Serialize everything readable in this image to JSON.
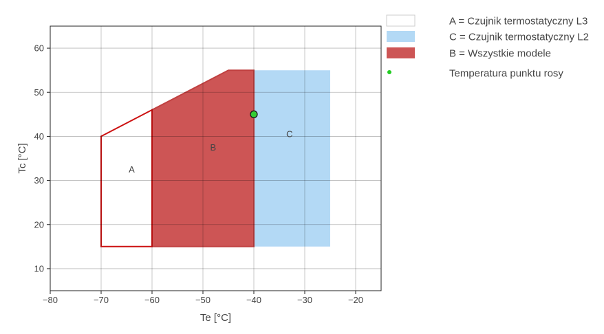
{
  "chart_data": {
    "type": "area",
    "xlabel": "Te [°C]",
    "ylabel": "Tc [°C]",
    "xlim": [
      -80,
      -15
    ],
    "ylim": [
      5,
      65
    ],
    "xticks": [
      -80,
      -70,
      -60,
      -50,
      -40,
      -30,
      -20
    ],
    "xtick_labels": [
      "−80",
      "−70",
      "−60",
      "−50",
      "−40",
      "−30",
      "−20"
    ],
    "yticks": [
      10,
      20,
      30,
      40,
      50,
      60
    ],
    "ytick_labels": [
      "10",
      "20",
      "30",
      "40",
      "50",
      "60"
    ],
    "grid": true,
    "legend_position": "right",
    "regions": [
      {
        "label": "C",
        "legend": "C = Czujnik termostatyczny L2",
        "fill": "#b3d9f5",
        "stroke": "none",
        "polygon": [
          [
            -40,
            15
          ],
          [
            -25,
            15
          ],
          [
            -25,
            55
          ],
          [
            -40,
            55
          ]
        ]
      },
      {
        "label": "B",
        "legend": "B = Wszystkie modele",
        "fill": "#cd5555",
        "stroke": "#c04040",
        "polygon": [
          [
            -60,
            15
          ],
          [
            -40,
            15
          ],
          [
            -40,
            55
          ],
          [
            -45,
            55
          ],
          [
            -60,
            46
          ]
        ]
      },
      {
        "label": "A",
        "legend": "A = Czujnik termostatyczny L3",
        "fill": "none",
        "stroke": "#cc1111",
        "polygon": [
          [
            -70,
            15
          ],
          [
            -60,
            15
          ],
          [
            -60,
            46
          ],
          [
            -70,
            40
          ]
        ]
      }
    ],
    "region_label_positions": {
      "A": [
        -64,
        32.5
      ],
      "B": [
        -48,
        37.5
      ],
      "C": [
        -33,
        40.5
      ]
    },
    "points": [
      {
        "name": "Temperatura punktu rosy",
        "x": -40,
        "y": 45,
        "color": "#33cc33"
      }
    ],
    "legend": [
      {
        "text": "A = Czujnik termostatyczny L3",
        "swatch_fill": "#ffffff",
        "swatch_stroke": "#cccccc",
        "kind": "box"
      },
      {
        "text": "C = Czujnik termostatyczny L2",
        "swatch_fill": "#b3d9f5",
        "swatch_stroke": "none",
        "kind": "box"
      },
      {
        "text": "B = Wszystkie modele",
        "swatch_fill": "#cd5555",
        "swatch_stroke": "none",
        "kind": "box"
      },
      {
        "text": "Temperatura punktu rosy",
        "swatch_fill": "#22cc22",
        "swatch_stroke": "none",
        "kind": "dot"
      }
    ]
  }
}
